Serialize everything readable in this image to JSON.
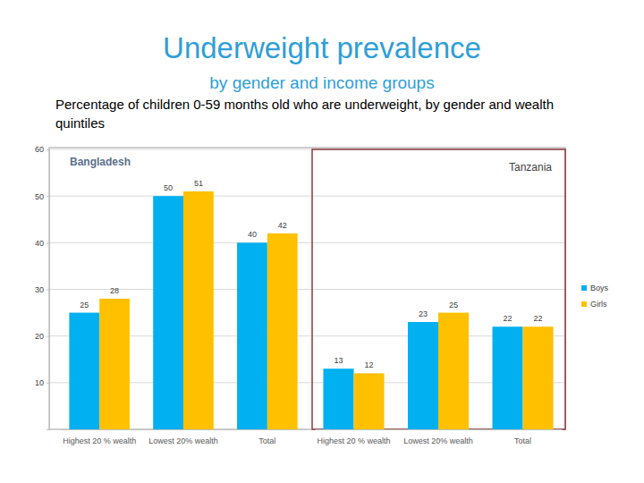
{
  "chart_data": {
    "type": "bar",
    "title": "Underweight prevalence",
    "subtitle": "by gender and income groups",
    "caption": "Percentage of children 0-59 months old who are underweight, by gender and wealth quintiles",
    "ylim": [
      0,
      60
    ],
    "yticks": [
      10,
      20,
      30,
      40,
      50,
      60
    ],
    "grid": true,
    "legend": "right",
    "data_labels": true,
    "panels": [
      {
        "title": "Bangladesh",
        "categories": [
          "Highest 20 % wealth",
          "Lowest 20% wealth",
          "Total"
        ],
        "series": [
          {
            "name": "Boys",
            "color": "#00b0f0",
            "values": [
              25,
              50,
              40
            ]
          },
          {
            "name": "Girls",
            "color": "#ffc000",
            "values": [
              28,
              51,
              42
            ]
          }
        ]
      },
      {
        "title": "Tanzania",
        "categories": [
          "Highest 20 % wealth",
          "Lowest 20% wealth",
          "Total"
        ],
        "series": [
          {
            "name": "Boys",
            "color": "#00b0f0",
            "values": [
              13,
              23,
              22
            ]
          },
          {
            "name": "Girls",
            "color": "#ffc000",
            "values": [
              12,
              25,
              22
            ]
          }
        ]
      }
    ]
  }
}
